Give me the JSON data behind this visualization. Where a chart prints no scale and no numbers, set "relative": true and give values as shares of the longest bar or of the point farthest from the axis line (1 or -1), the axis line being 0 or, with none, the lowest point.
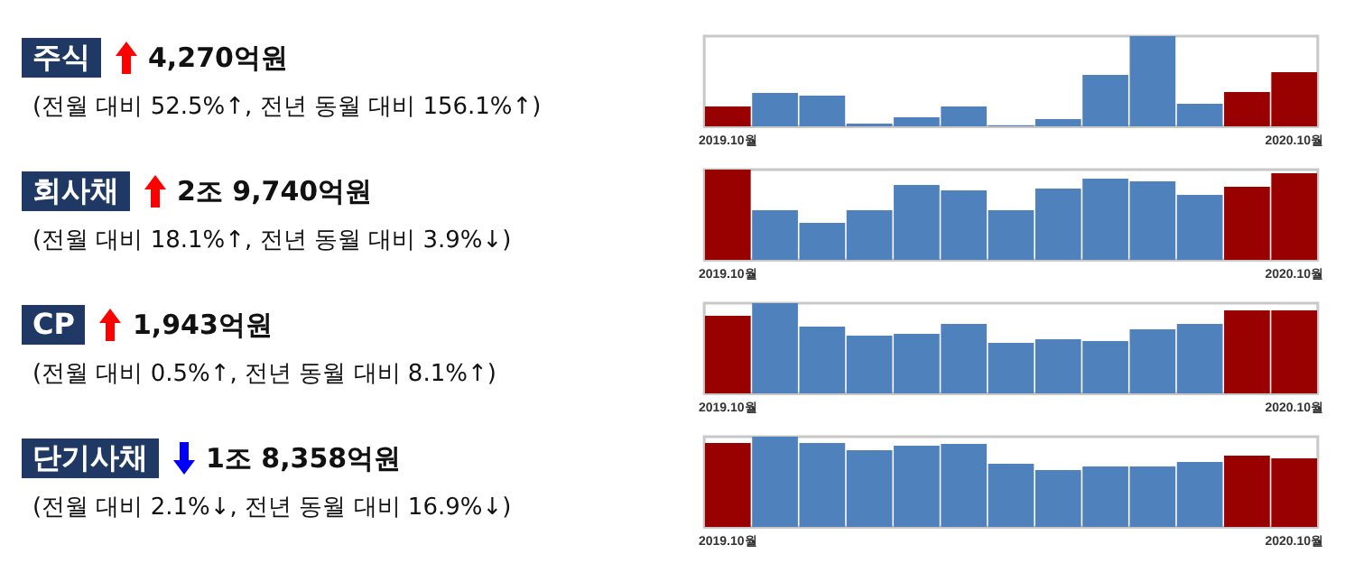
{
  "chart_data": [
    {
      "type": "other",
      "title": "주식",
      "annotations": [
        "4,270억원",
        "(전월 대비 52.5%↑, 전년 동월 대비 156.1%↑)"
      ]
    },
    {
      "type": "bar",
      "relative": true,
      "grid": false,
      "categories": [
        "2019.10월",
        null,
        null,
        null,
        null,
        null,
        null,
        null,
        null,
        null,
        null,
        null,
        "2020.10월"
      ],
      "values": [
        0.22,
        0.37,
        0.34,
        0.03,
        0.1,
        0.22,
        0.01,
        0.08,
        0.57,
        1,
        0.25,
        0.38,
        0.6
      ],
      "colors": [
        "#990000",
        "#4f81bd",
        "#4f81bd",
        "#4f81bd",
        "#4f81bd",
        "#4f81bd",
        "#4f81bd",
        "#4f81bd",
        "#4f81bd",
        "#4f81bd",
        "#4f81bd",
        "#990000",
        "#990000"
      ]
    },
    {
      "type": "other",
      "title": "회사채",
      "annotations": [
        "2조 9,740억원",
        "(전월 대비 18.1%↑, 전년 동월 대비 3.9%↓)"
      ]
    },
    {
      "type": "bar",
      "relative": true,
      "grid": false,
      "categories": [
        "2019.10월",
        null,
        null,
        null,
        null,
        null,
        null,
        null,
        null,
        null,
        null,
        null,
        "2020.10월"
      ],
      "values": [
        1,
        0.55,
        0.41,
        0.55,
        0.83,
        0.77,
        0.55,
        0.79,
        0.9,
        0.87,
        0.72,
        0.81,
        0.96
      ],
      "colors": [
        "#990000",
        "#4f81bd",
        "#4f81bd",
        "#4f81bd",
        "#4f81bd",
        "#4f81bd",
        "#4f81bd",
        "#4f81bd",
        "#4f81bd",
        "#4f81bd",
        "#4f81bd",
        "#990000",
        "#990000"
      ]
    },
    {
      "type": "other",
      "title": "CP",
      "annotations": [
        "1,943억원",
        "(전월 대비 0.5%↑, 전년 동월 대비 8.1%↑)"
      ]
    },
    {
      "type": "bar",
      "relative": true,
      "grid": false,
      "categories": [
        "2019.10월",
        null,
        null,
        null,
        null,
        null,
        null,
        null,
        null,
        null,
        null,
        null,
        "2020.10월"
      ],
      "values": [
        0.86,
        1,
        0.74,
        0.64,
        0.66,
        0.77,
        0.56,
        0.6,
        0.58,
        0.71,
        0.77,
        0.92,
        0.92
      ],
      "colors": [
        "#990000",
        "#4f81bd",
        "#4f81bd",
        "#4f81bd",
        "#4f81bd",
        "#4f81bd",
        "#4f81bd",
        "#4f81bd",
        "#4f81bd",
        "#4f81bd",
        "#4f81bd",
        "#990000",
        "#990000"
      ]
    },
    {
      "type": "other",
      "title": "단기사채",
      "annotations": [
        "1조 8,358억원",
        "(전월 대비 2.1%↓, 전년 동월 대비 16.9%↓)"
      ]
    },
    {
      "type": "bar",
      "relative": true,
      "grid": false,
      "categories": [
        "2019.10월",
        null,
        null,
        null,
        null,
        null,
        null,
        null,
        null,
        null,
        null,
        null,
        "2020.10월"
      ],
      "values": [
        0.93,
        1,
        0.93,
        0.85,
        0.9,
        0.92,
        0.7,
        0.63,
        0.67,
        0.67,
        0.72,
        0.79,
        0.76
      ],
      "colors": [
        "#990000",
        "#4f81bd",
        "#4f81bd",
        "#4f81bd",
        "#4f81bd",
        "#4f81bd",
        "#4f81bd",
        "#4f81bd",
        "#4f81bd",
        "#4f81bd",
        "#4f81bd",
        "#990000",
        "#990000"
      ]
    }
  ]
}
